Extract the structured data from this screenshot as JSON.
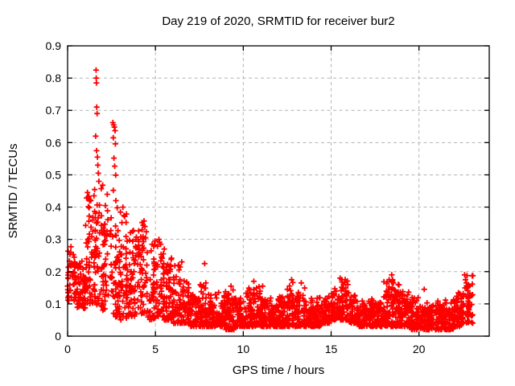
{
  "figure": {
    "background_color": "#ffffff",
    "text_color": "#000000"
  },
  "chart_data": {
    "type": "scatter",
    "title": "Day 219 of 2020, SRMTID for receiver bur2",
    "xlabel": "GPS time / hours",
    "ylabel": "SRMTID / TECUs",
    "xlim": [
      0,
      24
    ],
    "ylim": [
      0,
      0.9
    ],
    "xticks": [
      {
        "v": 0,
        "label": "0"
      },
      {
        "v": 5,
        "label": "5"
      },
      {
        "v": 10,
        "label": "10"
      },
      {
        "v": 15,
        "label": "15"
      },
      {
        "v": 20,
        "label": "20"
      }
    ],
    "yticks": [
      {
        "v": 0.0,
        "label": "0"
      },
      {
        "v": 0.1,
        "label": "0.1"
      },
      {
        "v": 0.2,
        "label": "0.2"
      },
      {
        "v": 0.3,
        "label": "0.3"
      },
      {
        "v": 0.4,
        "label": "0.4"
      },
      {
        "v": 0.5,
        "label": "0.5"
      },
      {
        "v": 0.6,
        "label": "0.6"
      },
      {
        "v": 0.7,
        "label": "0.7"
      },
      {
        "v": 0.8,
        "label": "0.8"
      },
      {
        "v": 0.9,
        "label": "0.9"
      }
    ],
    "grid": {
      "show": true,
      "style": "dashed",
      "color": "#b3b3b3"
    },
    "border_color": "#000000",
    "legend": "none",
    "marker": {
      "shape": "plus",
      "color": "#ff0000",
      "size": 7
    },
    "x_data_start": 0.0,
    "x_data_end": 23.1,
    "series": [
      {
        "name": "SRMTID",
        "color": "#ff0000",
        "envelope_format": [
          "t_start",
          "t_end",
          "n_points",
          "y_low",
          "y_high",
          "skew"
        ],
        "envelope": [
          [
            0.0,
            0.5,
            55,
            0.11,
            0.28,
            1.3
          ],
          [
            0.5,
            1.0,
            55,
            0.08,
            0.24,
            1.3
          ],
          [
            1.0,
            1.5,
            55,
            0.1,
            0.45,
            1.5
          ],
          [
            1.5,
            2.0,
            60,
            0.09,
            0.47,
            1.6
          ],
          [
            2.0,
            2.5,
            55,
            0.08,
            0.45,
            1.6
          ],
          [
            2.5,
            3.0,
            55,
            0.06,
            0.42,
            1.7
          ],
          [
            3.0,
            3.5,
            55,
            0.05,
            0.42,
            1.7
          ],
          [
            3.5,
            4.0,
            55,
            0.06,
            0.33,
            1.6
          ],
          [
            4.0,
            4.5,
            55,
            0.07,
            0.36,
            1.8
          ],
          [
            4.5,
            5.0,
            55,
            0.05,
            0.3,
            1.8
          ],
          [
            5.0,
            5.5,
            55,
            0.06,
            0.3,
            2.0
          ],
          [
            5.5,
            6.0,
            55,
            0.05,
            0.25,
            2.0
          ],
          [
            6.0,
            6.5,
            55,
            0.04,
            0.23,
            2.0
          ],
          [
            6.5,
            7.0,
            55,
            0.04,
            0.18,
            2.0
          ],
          [
            7.0,
            7.5,
            55,
            0.03,
            0.15,
            2.0
          ],
          [
            7.5,
            8.0,
            55,
            0.03,
            0.17,
            2.2
          ],
          [
            8.0,
            8.5,
            58,
            0.03,
            0.13,
            2.0
          ],
          [
            8.5,
            9.0,
            58,
            0.03,
            0.14,
            2.0
          ],
          [
            9.0,
            9.5,
            58,
            0.02,
            0.15,
            2.2
          ],
          [
            9.5,
            10.0,
            58,
            0.03,
            0.12,
            2.0
          ],
          [
            10.0,
            10.5,
            58,
            0.03,
            0.15,
            2.2
          ],
          [
            10.5,
            11.0,
            58,
            0.03,
            0.16,
            2.2
          ],
          [
            11.0,
            11.5,
            58,
            0.03,
            0.13,
            2.0
          ],
          [
            11.5,
            12.0,
            58,
            0.03,
            0.12,
            2.0
          ],
          [
            12.0,
            12.5,
            58,
            0.03,
            0.13,
            2.0
          ],
          [
            12.5,
            13.0,
            58,
            0.03,
            0.17,
            2.2
          ],
          [
            13.0,
            13.5,
            58,
            0.03,
            0.16,
            2.2
          ],
          [
            13.5,
            14.0,
            58,
            0.03,
            0.12,
            2.0
          ],
          [
            14.0,
            14.5,
            58,
            0.03,
            0.12,
            2.0
          ],
          [
            14.5,
            15.0,
            58,
            0.04,
            0.13,
            1.8
          ],
          [
            15.0,
            15.5,
            58,
            0.05,
            0.15,
            1.6
          ],
          [
            15.5,
            16.0,
            58,
            0.05,
            0.18,
            1.7
          ],
          [
            16.0,
            16.5,
            58,
            0.04,
            0.13,
            1.8
          ],
          [
            16.5,
            17.0,
            58,
            0.03,
            0.12,
            2.0
          ],
          [
            17.0,
            17.5,
            58,
            0.03,
            0.12,
            2.0
          ],
          [
            17.5,
            18.0,
            58,
            0.03,
            0.13,
            2.0
          ],
          [
            18.0,
            18.5,
            58,
            0.03,
            0.18,
            2.2
          ],
          [
            18.5,
            19.0,
            58,
            0.03,
            0.16,
            2.2
          ],
          [
            19.0,
            19.5,
            58,
            0.03,
            0.14,
            2.0
          ],
          [
            19.5,
            20.0,
            58,
            0.02,
            0.12,
            2.0
          ],
          [
            20.0,
            20.5,
            55,
            0.02,
            0.11,
            1.8
          ],
          [
            20.5,
            21.0,
            55,
            0.02,
            0.1,
            1.8
          ],
          [
            21.0,
            21.5,
            55,
            0.02,
            0.11,
            1.8
          ],
          [
            21.5,
            22.0,
            55,
            0.02,
            0.12,
            1.8
          ],
          [
            22.0,
            22.5,
            55,
            0.03,
            0.14,
            1.8
          ],
          [
            22.5,
            23.1,
            60,
            0.04,
            0.19,
            1.5
          ]
        ],
        "outliers": [
          [
            1.62,
            0.825
          ],
          [
            1.63,
            0.8
          ],
          [
            1.64,
            0.785
          ],
          [
            1.66,
            0.71
          ],
          [
            1.68,
            0.69
          ],
          [
            1.6,
            0.62
          ],
          [
            1.65,
            0.575
          ],
          [
            1.7,
            0.555
          ],
          [
            1.72,
            0.53
          ],
          [
            1.75,
            0.505
          ],
          [
            1.78,
            0.48
          ],
          [
            1.5,
            0.435
          ],
          [
            2.58,
            0.662
          ],
          [
            2.62,
            0.655
          ],
          [
            2.66,
            0.648
          ],
          [
            2.7,
            0.637
          ],
          [
            2.6,
            0.615
          ],
          [
            2.72,
            0.596
          ],
          [
            2.64,
            0.552
          ],
          [
            2.68,
            0.527
          ],
          [
            2.74,
            0.499
          ],
          [
            2.6,
            0.452
          ],
          [
            2.75,
            0.42
          ],
          [
            3.15,
            0.4
          ],
          [
            4.35,
            0.357
          ],
          [
            4.4,
            0.34
          ],
          [
            5.2,
            0.3
          ],
          [
            5.3,
            0.285
          ],
          [
            6.5,
            0.23
          ],
          [
            7.8,
            0.225
          ],
          [
            9.3,
            0.155
          ],
          [
            10.6,
            0.17
          ],
          [
            11.1,
            0.155
          ],
          [
            12.75,
            0.175
          ],
          [
            13.3,
            0.165
          ],
          [
            15.6,
            0.175
          ],
          [
            15.7,
            0.16
          ],
          [
            18.45,
            0.19
          ],
          [
            18.5,
            0.175
          ],
          [
            18.55,
            0.165
          ],
          [
            20.3,
            0.145
          ],
          [
            22.6,
            0.19
          ],
          [
            22.65,
            0.175
          ],
          [
            22.7,
            0.165
          ]
        ]
      }
    ]
  }
}
